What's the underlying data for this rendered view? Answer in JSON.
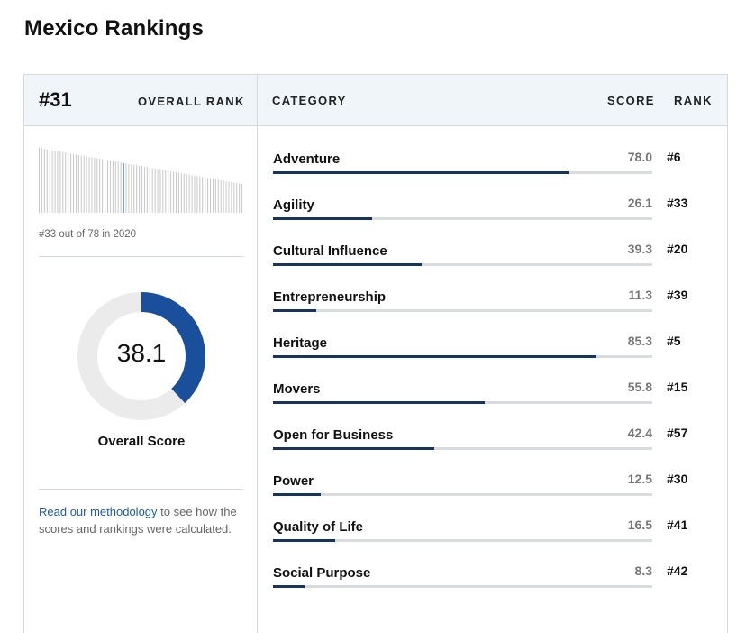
{
  "page_title": "Mexico Rankings",
  "overall": {
    "rank": "#31",
    "rank_label": "OVERALL RANK",
    "history_caption": "#33 out of 78 in 2020",
    "score": "38.1",
    "score_fraction": 0.381,
    "score_label": "Overall Score",
    "history_position": 33,
    "history_total": 78
  },
  "columns": {
    "category": "CATEGORY",
    "score": "SCORE",
    "rank": "RANK"
  },
  "methodology": {
    "link_text": "Read our methodology",
    "rest_text": " to see how the scores and rankings were calculated."
  },
  "categories": [
    {
      "name": "Adventure",
      "score": "78.0",
      "rank": "#6",
      "value": 78.0
    },
    {
      "name": "Agility",
      "score": "26.1",
      "rank": "#33",
      "value": 26.1
    },
    {
      "name": "Cultural Influence",
      "score": "39.3",
      "rank": "#20",
      "value": 39.3
    },
    {
      "name": "Entrepreneurship",
      "score": "11.3",
      "rank": "#39",
      "value": 11.3
    },
    {
      "name": "Heritage",
      "score": "85.3",
      "rank": "#5",
      "value": 85.3
    },
    {
      "name": "Movers",
      "score": "55.8",
      "rank": "#15",
      "value": 55.8
    },
    {
      "name": "Open for Business",
      "score": "42.4",
      "rank": "#57",
      "value": 42.4
    },
    {
      "name": "Power",
      "score": "12.5",
      "rank": "#30",
      "value": 12.5
    },
    {
      "name": "Quality of Life",
      "score": "16.5",
      "rank": "#41",
      "value": 16.5
    },
    {
      "name": "Social Purpose",
      "score": "8.3",
      "rank": "#42",
      "value": 8.3
    }
  ],
  "colors": {
    "accent": "#1a4f9c",
    "bar_fill": "#17345e",
    "bar_track": "#d9dcdf",
    "header_bg": "#f0f5f9",
    "link": "#1d5aa8"
  }
}
